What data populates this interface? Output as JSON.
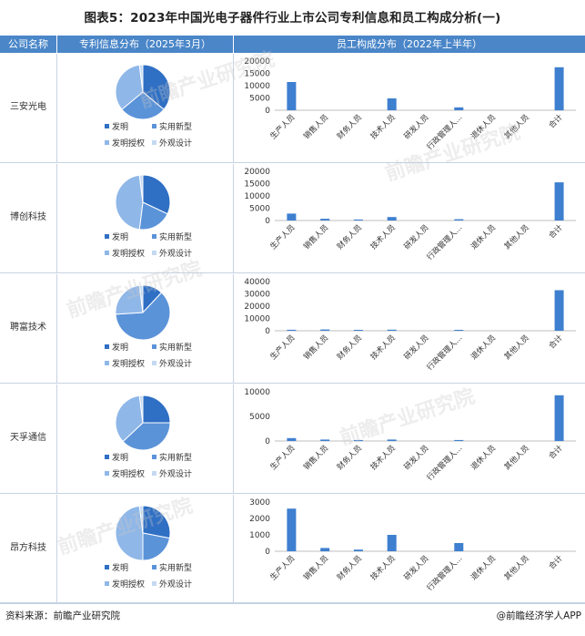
{
  "title": "图表5：2023年中国光电子器件行业上市公司专利信息和员工构成分析(一)",
  "headers": {
    "company": "公司名称",
    "patent": "专利信息分布（2025年3月）",
    "staff": "员工构成分布（2022年上半年）"
  },
  "legend": [
    "发明",
    "实用新型",
    "发明授权",
    "外观设计"
  ],
  "colors": {
    "header": "#4a86c8",
    "pie": [
      "#2f6fc4",
      "#5b93d9",
      "#8fb7e8",
      "#c4d9f2"
    ],
    "bar": "#3e7fd0"
  },
  "source": "资料来源：前瞻产业研究院",
  "brand": "@前瞻经济学人APP",
  "watermark": "前瞻产业研究院",
  "categories": [
    "生产人员",
    "销售人员",
    "财务人员",
    "技术人员",
    "研发人员",
    "行政管理人...",
    "退休人员",
    "其他人员",
    "合计"
  ],
  "chart_data": [
    {
      "type": "pie",
      "company": "三安光电",
      "labels": [
        "发明",
        "实用新型",
        "发明授权",
        "外观设计"
      ],
      "values": [
        36,
        28,
        34,
        2
      ]
    },
    {
      "type": "bar",
      "company": "三安光电",
      "categories": [
        "生产人员",
        "销售人员",
        "财务人员",
        "技术人员",
        "研发人员",
        "行政管理人...",
        "退休人员",
        "其他人员",
        "合计"
      ],
      "values": [
        11500,
        0,
        0,
        4800,
        0,
        1200,
        0,
        0,
        17500
      ],
      "ylim": [
        0,
        20000
      ],
      "yticks": [
        0,
        5000,
        10000,
        15000,
        20000
      ]
    },
    {
      "type": "pie",
      "company": "博创科技",
      "labels": [
        "发明",
        "实用新型",
        "发明授权",
        "外观设计"
      ],
      "values": [
        32,
        20,
        46,
        2
      ]
    },
    {
      "type": "bar",
      "company": "博创科技",
      "categories": [
        "生产人员",
        "销售人员",
        "财务人员",
        "技术人员",
        "研发人员",
        "行政管理人...",
        "退休人员",
        "其他人员",
        "合计"
      ],
      "values": [
        2800,
        700,
        400,
        1400,
        0,
        500,
        0,
        0,
        15500
      ],
      "ylim": [
        0,
        20000
      ],
      "yticks": [
        0,
        5000,
        10000,
        15000,
        20000
      ]
    },
    {
      "type": "pie",
      "company": "聘富技术",
      "labels": [
        "发明",
        "实用新型",
        "发明授权",
        "外观设计"
      ],
      "values": [
        12,
        62,
        24,
        2
      ]
    },
    {
      "type": "bar",
      "company": "聘富技术",
      "categories": [
        "生产人员",
        "销售人员",
        "财务人员",
        "技术人员",
        "研发人员",
        "行政管理人...",
        "退休人员",
        "其他人员",
        "合计"
      ],
      "values": [
        800,
        1000,
        600,
        900,
        0,
        700,
        0,
        0,
        33000
      ],
      "ylim": [
        0,
        40000
      ],
      "yticks": [
        0,
        10000,
        20000,
        30000,
        40000
      ]
    },
    {
      "type": "pie",
      "company": "天孚通信",
      "labels": [
        "发明",
        "实用新型",
        "发明授权",
        "外观设计"
      ],
      "values": [
        25,
        38,
        35,
        2
      ]
    },
    {
      "type": "bar",
      "company": "天孚通信",
      "categories": [
        "生产人员",
        "销售人员",
        "财务人员",
        "技术人员",
        "研发人员",
        "行政管理人...",
        "退休人员",
        "其他人员",
        "合计"
      ],
      "values": [
        600,
        300,
        200,
        300,
        0,
        200,
        0,
        0,
        9300
      ],
      "ylim": [
        0,
        10000
      ],
      "yticks": [
        0,
        5000,
        10000
      ]
    },
    {
      "type": "pie",
      "company": "昂方科技",
      "labels": [
        "发明",
        "实用新型",
        "发明授权",
        "外观设计"
      ],
      "values": [
        28,
        22,
        48,
        2
      ]
    },
    {
      "type": "bar",
      "company": "昂方科技",
      "categories": [
        "生产人员",
        "销售人员",
        "财务人员",
        "技术人员",
        "研发人员",
        "行政管理人...",
        "退休人员",
        "其他人员",
        "合计"
      ],
      "values": [
        2600,
        200,
        100,
        1000,
        0,
        500,
        0,
        0,
        0
      ],
      "ylim": [
        0,
        3000
      ],
      "yticks": [
        0,
        1000,
        2000,
        3000
      ]
    }
  ]
}
